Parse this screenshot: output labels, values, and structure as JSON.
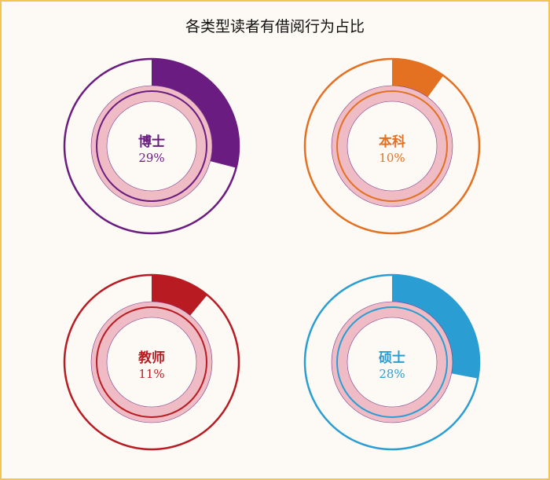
{
  "chart_data": {
    "type": "pie",
    "title": "各类型读者有借阅行为占比",
    "series": [
      {
        "name": "博士",
        "percent_label": "29%",
        "value": 29,
        "color": "#6b1c80"
      },
      {
        "name": "本科",
        "percent_label": "10%",
        "value": 10,
        "color": "#e47022"
      },
      {
        "name": "教师",
        "percent_label": "11%",
        "value": 11,
        "color": "#b81c22"
      },
      {
        "name": "硕士",
        "percent_label": "28%",
        "value": 28,
        "color": "#2a9ed3"
      }
    ],
    "inner_band_color": "#efbcc5",
    "background": "#fdfaf5",
    "border_color": "#f0c650"
  }
}
